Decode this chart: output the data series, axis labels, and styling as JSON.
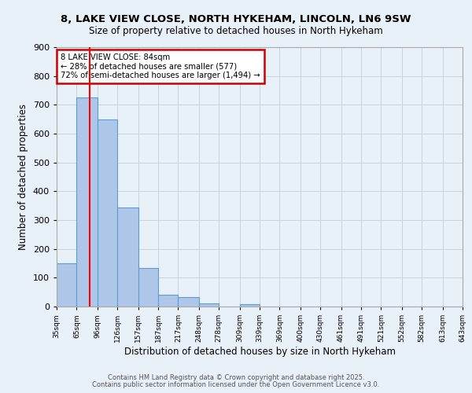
{
  "title1": "8, LAKE VIEW CLOSE, NORTH HYKEHAM, LINCOLN, LN6 9SW",
  "title2": "Size of property relative to detached houses in North Hykeham",
  "xlabel": "Distribution of detached houses by size in North Hykeham",
  "ylabel": "Number of detached properties",
  "bin_labels": [
    "35sqm",
    "65sqm",
    "96sqm",
    "126sqm",
    "157sqm",
    "187sqm",
    "217sqm",
    "248sqm",
    "278sqm",
    "309sqm",
    "339sqm",
    "369sqm",
    "400sqm",
    "430sqm",
    "461sqm",
    "491sqm",
    "521sqm",
    "552sqm",
    "582sqm",
    "613sqm",
    "643sqm"
  ],
  "bin_edges": [
    35,
    65,
    96,
    126,
    157,
    187,
    217,
    248,
    278,
    309,
    339,
    369,
    400,
    430,
    461,
    491,
    521,
    552,
    582,
    613,
    643
  ],
  "bar_values": [
    150,
    725,
    650,
    345,
    135,
    42,
    32,
    12,
    0,
    7,
    0,
    0,
    0,
    0,
    0,
    0,
    0,
    0,
    0,
    0
  ],
  "bar_color": "#aec6e8",
  "bar_edge_color": "#5a9fd4",
  "background_color": "#e8f0f8",
  "grid_color": "#c8d4e0",
  "red_line_x": 84,
  "annotation_line1": "8 LAKE VIEW CLOSE: 84sqm",
  "annotation_line2": "← 28% of detached houses are smaller (577)",
  "annotation_line3": "72% of semi-detached houses are larger (1,494) →",
  "annotation_box_color": "#ffffff",
  "annotation_box_edge": "#cc0000",
  "footer1": "Contains HM Land Registry data © Crown copyright and database right 2025.",
  "footer2": "Contains public sector information licensed under the Open Government Licence v3.0.",
  "ylim": [
    0,
    900
  ],
  "yticks": [
    0,
    100,
    200,
    300,
    400,
    500,
    600,
    700,
    800,
    900
  ]
}
